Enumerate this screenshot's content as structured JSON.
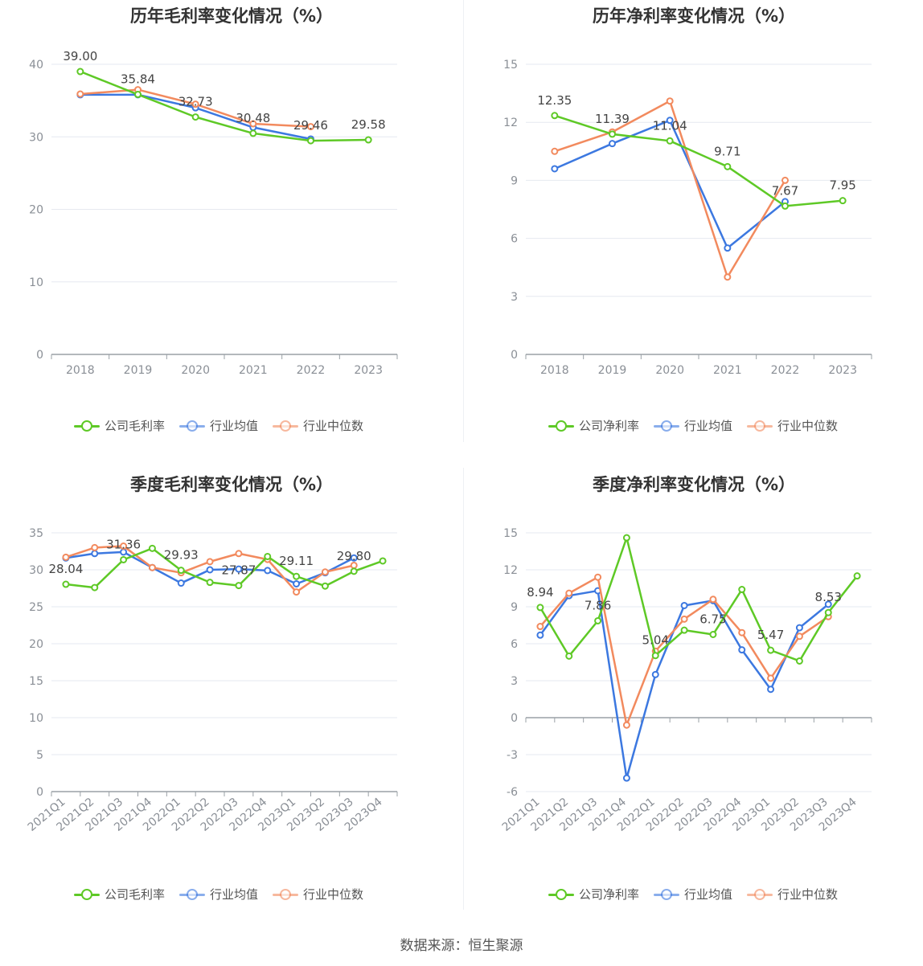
{
  "colors": {
    "company": "#5ec926",
    "avg": "#3c78e0",
    "median": "#f28a5e",
    "grid": "#e6e9f0",
    "axis": "#9aa0a6",
    "tick": "#8a8f96"
  },
  "source": "数据来源：恒生聚源",
  "charts": [
    {
      "id": "annual-gross",
      "title": "历年毛利率变化情况（%）",
      "legend": [
        "公司毛利率",
        "行业均值",
        "行业中位数"
      ]
    },
    {
      "id": "annual-net",
      "title": "历年净利率变化情况（%）",
      "legend": [
        "公司净利率",
        "行业均值",
        "行业中位数"
      ]
    },
    {
      "id": "quarter-gross",
      "title": "季度毛利率变化情况（%）",
      "legend": [
        "公司毛利率",
        "行业均值",
        "行业中位数"
      ]
    },
    {
      "id": "quarter-net",
      "title": "季度净利率变化情况（%）",
      "legend": [
        "公司净利率",
        "行业均值",
        "行业中位数"
      ]
    }
  ],
  "chart_data": [
    {
      "type": "line",
      "title": "历年毛利率变化情况（%）",
      "categories": [
        "2018",
        "2019",
        "2020",
        "2021",
        "2022",
        "2023"
      ],
      "ylim": [
        0,
        40
      ],
      "yticks": [
        0,
        10,
        20,
        30,
        40
      ],
      "grid": true,
      "legend_position": "bottom",
      "series": [
        {
          "name": "公司毛利率",
          "values": [
            39.0,
            35.84,
            32.73,
            30.48,
            29.46,
            29.58
          ],
          "labels": [
            "39.00",
            "35.84",
            "32.73",
            "30.48",
            "29.46",
            "29.58"
          ]
        },
        {
          "name": "行业均值",
          "values": [
            35.8,
            35.8,
            34.0,
            31.3,
            29.7,
            null
          ]
        },
        {
          "name": "行业中位数",
          "values": [
            35.9,
            36.5,
            34.5,
            31.8,
            31.4,
            null
          ]
        }
      ]
    },
    {
      "type": "line",
      "title": "历年净利率变化情况（%）",
      "categories": [
        "2018",
        "2019",
        "2020",
        "2021",
        "2022",
        "2023"
      ],
      "ylim": [
        0,
        15
      ],
      "yticks": [
        0,
        3,
        6,
        9,
        12,
        15
      ],
      "grid": true,
      "legend_position": "bottom",
      "series": [
        {
          "name": "公司净利率",
          "values": [
            12.35,
            11.39,
            11.04,
            9.71,
            7.67,
            7.95
          ],
          "labels": [
            "12.35",
            "11.39",
            "11.04",
            "9.71",
            "7.67",
            "7.95"
          ]
        },
        {
          "name": "行业均值",
          "values": [
            9.6,
            10.9,
            12.1,
            5.5,
            7.9,
            null
          ]
        },
        {
          "name": "行业中位数",
          "values": [
            10.5,
            11.5,
            13.1,
            4.0,
            9.0,
            null
          ]
        }
      ]
    },
    {
      "type": "line",
      "title": "季度毛利率变化情况（%）",
      "categories": [
        "2021Q1",
        "2021Q2",
        "2021Q3",
        "2021Q4",
        "2022Q1",
        "2022Q2",
        "2022Q3",
        "2022Q4",
        "2023Q1",
        "2023Q2",
        "2023Q3",
        "2023Q4"
      ],
      "ylim": [
        0,
        35
      ],
      "yticks": [
        0,
        5,
        10,
        15,
        20,
        25,
        30,
        35
      ],
      "grid": true,
      "legend_position": "bottom",
      "series": [
        {
          "name": "公司毛利率",
          "values": [
            28.04,
            27.6,
            31.36,
            32.9,
            29.93,
            28.3,
            27.87,
            31.8,
            29.11,
            27.8,
            29.8,
            31.2
          ],
          "labels": [
            "28.04",
            "",
            "31.36",
            "",
            "29.93",
            "",
            "27.87",
            "",
            "29.11",
            "",
            "29.80",
            ""
          ]
        },
        {
          "name": "行业均值",
          "values": [
            31.6,
            32.2,
            32.4,
            30.3,
            28.2,
            30.0,
            30.1,
            29.9,
            28.1,
            29.6,
            31.6,
            null
          ]
        },
        {
          "name": "行业中位数",
          "values": [
            31.7,
            33.0,
            33.2,
            30.3,
            29.6,
            31.1,
            32.2,
            31.4,
            27.0,
            29.7,
            30.6,
            null
          ]
        }
      ]
    },
    {
      "type": "line",
      "title": "季度净利率变化情况（%）",
      "categories": [
        "2021Q1",
        "2021Q2",
        "2021Q3",
        "2021Q4",
        "2022Q1",
        "2022Q2",
        "2022Q3",
        "2022Q4",
        "2023Q1",
        "2023Q2",
        "2023Q3",
        "2023Q4"
      ],
      "ylim": [
        -6,
        15
      ],
      "yticks": [
        -6,
        -3,
        0,
        3,
        6,
        9,
        12,
        15
      ],
      "grid": true,
      "legend_position": "bottom",
      "series": [
        {
          "name": "公司净利率",
          "values": [
            8.94,
            5.0,
            7.86,
            14.6,
            5.04,
            7.1,
            6.75,
            10.4,
            5.47,
            4.6,
            8.53,
            11.5
          ],
          "labels": [
            "8.94",
            "",
            "7.86",
            "",
            "5.04",
            "",
            "6.75",
            "",
            "5.47",
            "",
            "8.53",
            ""
          ]
        },
        {
          "name": "行业均值",
          "values": [
            6.7,
            9.9,
            10.3,
            -4.9,
            3.5,
            9.1,
            9.5,
            5.5,
            2.3,
            7.3,
            9.2,
            null
          ]
        },
        {
          "name": "行业中位数",
          "values": [
            7.4,
            10.1,
            11.4,
            -0.6,
            5.4,
            8.0,
            9.6,
            6.9,
            3.2,
            6.6,
            8.2,
            null
          ]
        }
      ]
    }
  ]
}
